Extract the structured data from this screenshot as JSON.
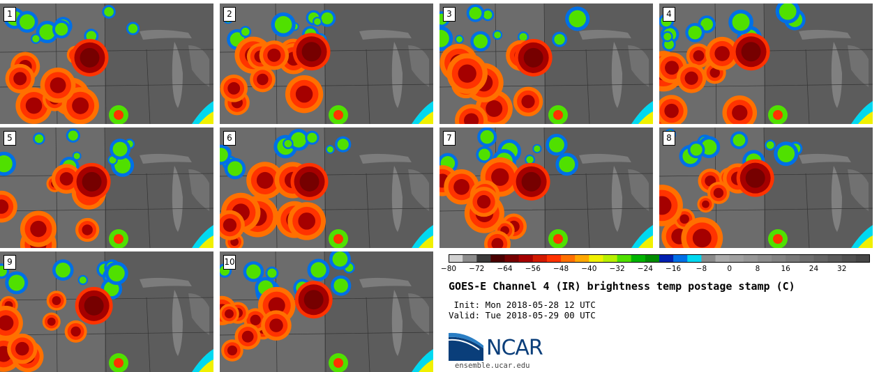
{
  "panels": [
    {
      "label": "1",
      "storm_center": [
        0.42,
        0.45
      ]
    },
    {
      "label": "2",
      "storm_center": [
        0.43,
        0.4
      ]
    },
    {
      "label": "3",
      "storm_center": [
        0.44,
        0.45
      ]
    },
    {
      "label": "4",
      "storm_center": [
        0.43,
        0.4
      ]
    },
    {
      "label": "5",
      "storm_center": [
        0.43,
        0.45
      ]
    },
    {
      "label": "6",
      "storm_center": [
        0.42,
        0.45
      ]
    },
    {
      "label": "7",
      "storm_center": [
        0.43,
        0.45
      ]
    },
    {
      "label": "8",
      "storm_center": [
        0.45,
        0.42
      ]
    },
    {
      "label": "9",
      "storm_center": [
        0.44,
        0.45
      ]
    },
    {
      "label": "10",
      "storm_center": [
        0.44,
        0.4
      ]
    }
  ],
  "colorbar": {
    "ticks": [
      "−80",
      "−72",
      "−64",
      "−56",
      "−48",
      "−40",
      "−32",
      "−24",
      "−16",
      "−8",
      "0",
      "8",
      "16",
      "24",
      "32"
    ],
    "tick_values": [
      -80,
      -72,
      -64,
      -56,
      -48,
      -40,
      -32,
      -24,
      -16,
      -8,
      0,
      8,
      16,
      24,
      32
    ],
    "min": -80,
    "max": 40,
    "colors": [
      "#d0d0d0",
      "#8c8c8c",
      "#3a3a3a",
      "#4a0000",
      "#760000",
      "#a50000",
      "#d21a00",
      "#ff3300",
      "#ff7000",
      "#ffa800",
      "#f0f000",
      "#b8f000",
      "#50e000",
      "#00b400",
      "#008c00",
      "#0020b0",
      "#0070e6",
      "#00d8f0",
      "#8a8a8a",
      "#aaaaaa",
      "#a0a0a0",
      "#969696",
      "#8c8c8c",
      "#828282",
      "#787878",
      "#6e6e6e",
      "#646464",
      "#5a5a5a",
      "#505050",
      "#464646"
    ]
  },
  "title": "GOES-E Channel 4 (IR) brightness temp postage stamp (C)",
  "init": " Init: Mon 2018-05-28 12 UTC",
  "valid": "Valid: Tue 2018-05-29 00 UTC",
  "logo_text": "NCAR",
  "logo_url": "ensemble.ucar.edu",
  "colors": {
    "logo_blue": "#0a3e7a",
    "logo_light": "#2a7ec4"
  }
}
